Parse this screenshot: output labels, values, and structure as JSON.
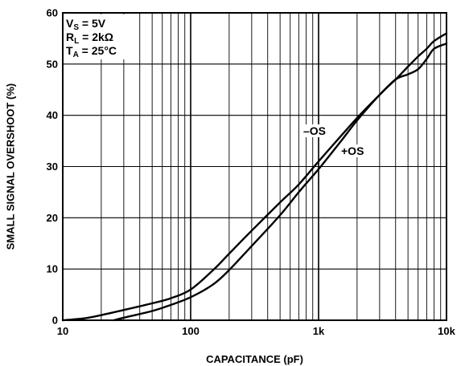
{
  "chart_data": {
    "type": "line",
    "x_scale": "log",
    "xlim": [
      10,
      10000
    ],
    "ylim": [
      0,
      60
    ],
    "y_ticks": [
      0,
      10,
      20,
      30,
      40,
      50,
      60
    ],
    "x_ticks": [
      10,
      100,
      1000,
      10000
    ],
    "x_tick_labels": [
      "10",
      "100",
      "1k",
      "10k"
    ],
    "xlabel": "CAPACITANCE (pF)",
    "ylabel": "SMALL SIGNAL OVERSHOOT (%)",
    "grid": true,
    "conditions": [
      {
        "main": "V",
        "sub": "S",
        "rest": " = 5V"
      },
      {
        "main": "R",
        "sub": "L",
        "rest": " = 2kΩ"
      },
      {
        "main": "T",
        "sub": "A",
        "rest": " = 25°C"
      }
    ],
    "series": [
      {
        "name": "–OS",
        "x": [
          10,
          15,
          20,
          30,
          50,
          70,
          100,
          150,
          200,
          300,
          500,
          700,
          1000,
          1500,
          2000,
          3000,
          4000,
          5000,
          6000,
          7000,
          8000,
          10000
        ],
        "y": [
          0,
          0.4,
          1.0,
          2.0,
          3.3,
          4.3,
          6.0,
          9.8,
          13.0,
          17.5,
          23.0,
          26.5,
          31.0,
          36.0,
          39.5,
          44.0,
          47.0,
          48.0,
          49.0,
          51.0,
          53.0,
          54.0
        ]
      },
      {
        "name": "+OS",
        "x": [
          25,
          30,
          50,
          70,
          100,
          150,
          200,
          300,
          500,
          700,
          1000,
          1500,
          2000,
          3000,
          4000,
          5000,
          6000,
          7000,
          8000,
          10000
        ],
        "y": [
          0,
          0.5,
          1.8,
          3.0,
          4.5,
          7.0,
          9.8,
          14.5,
          20.5,
          25.0,
          29.5,
          35.0,
          39.0,
          44.0,
          47.0,
          49.5,
          51.5,
          53.0,
          54.5,
          56.0
        ]
      }
    ]
  },
  "labels": {
    "neg_os": "–OS",
    "pos_os": "+OS"
  }
}
